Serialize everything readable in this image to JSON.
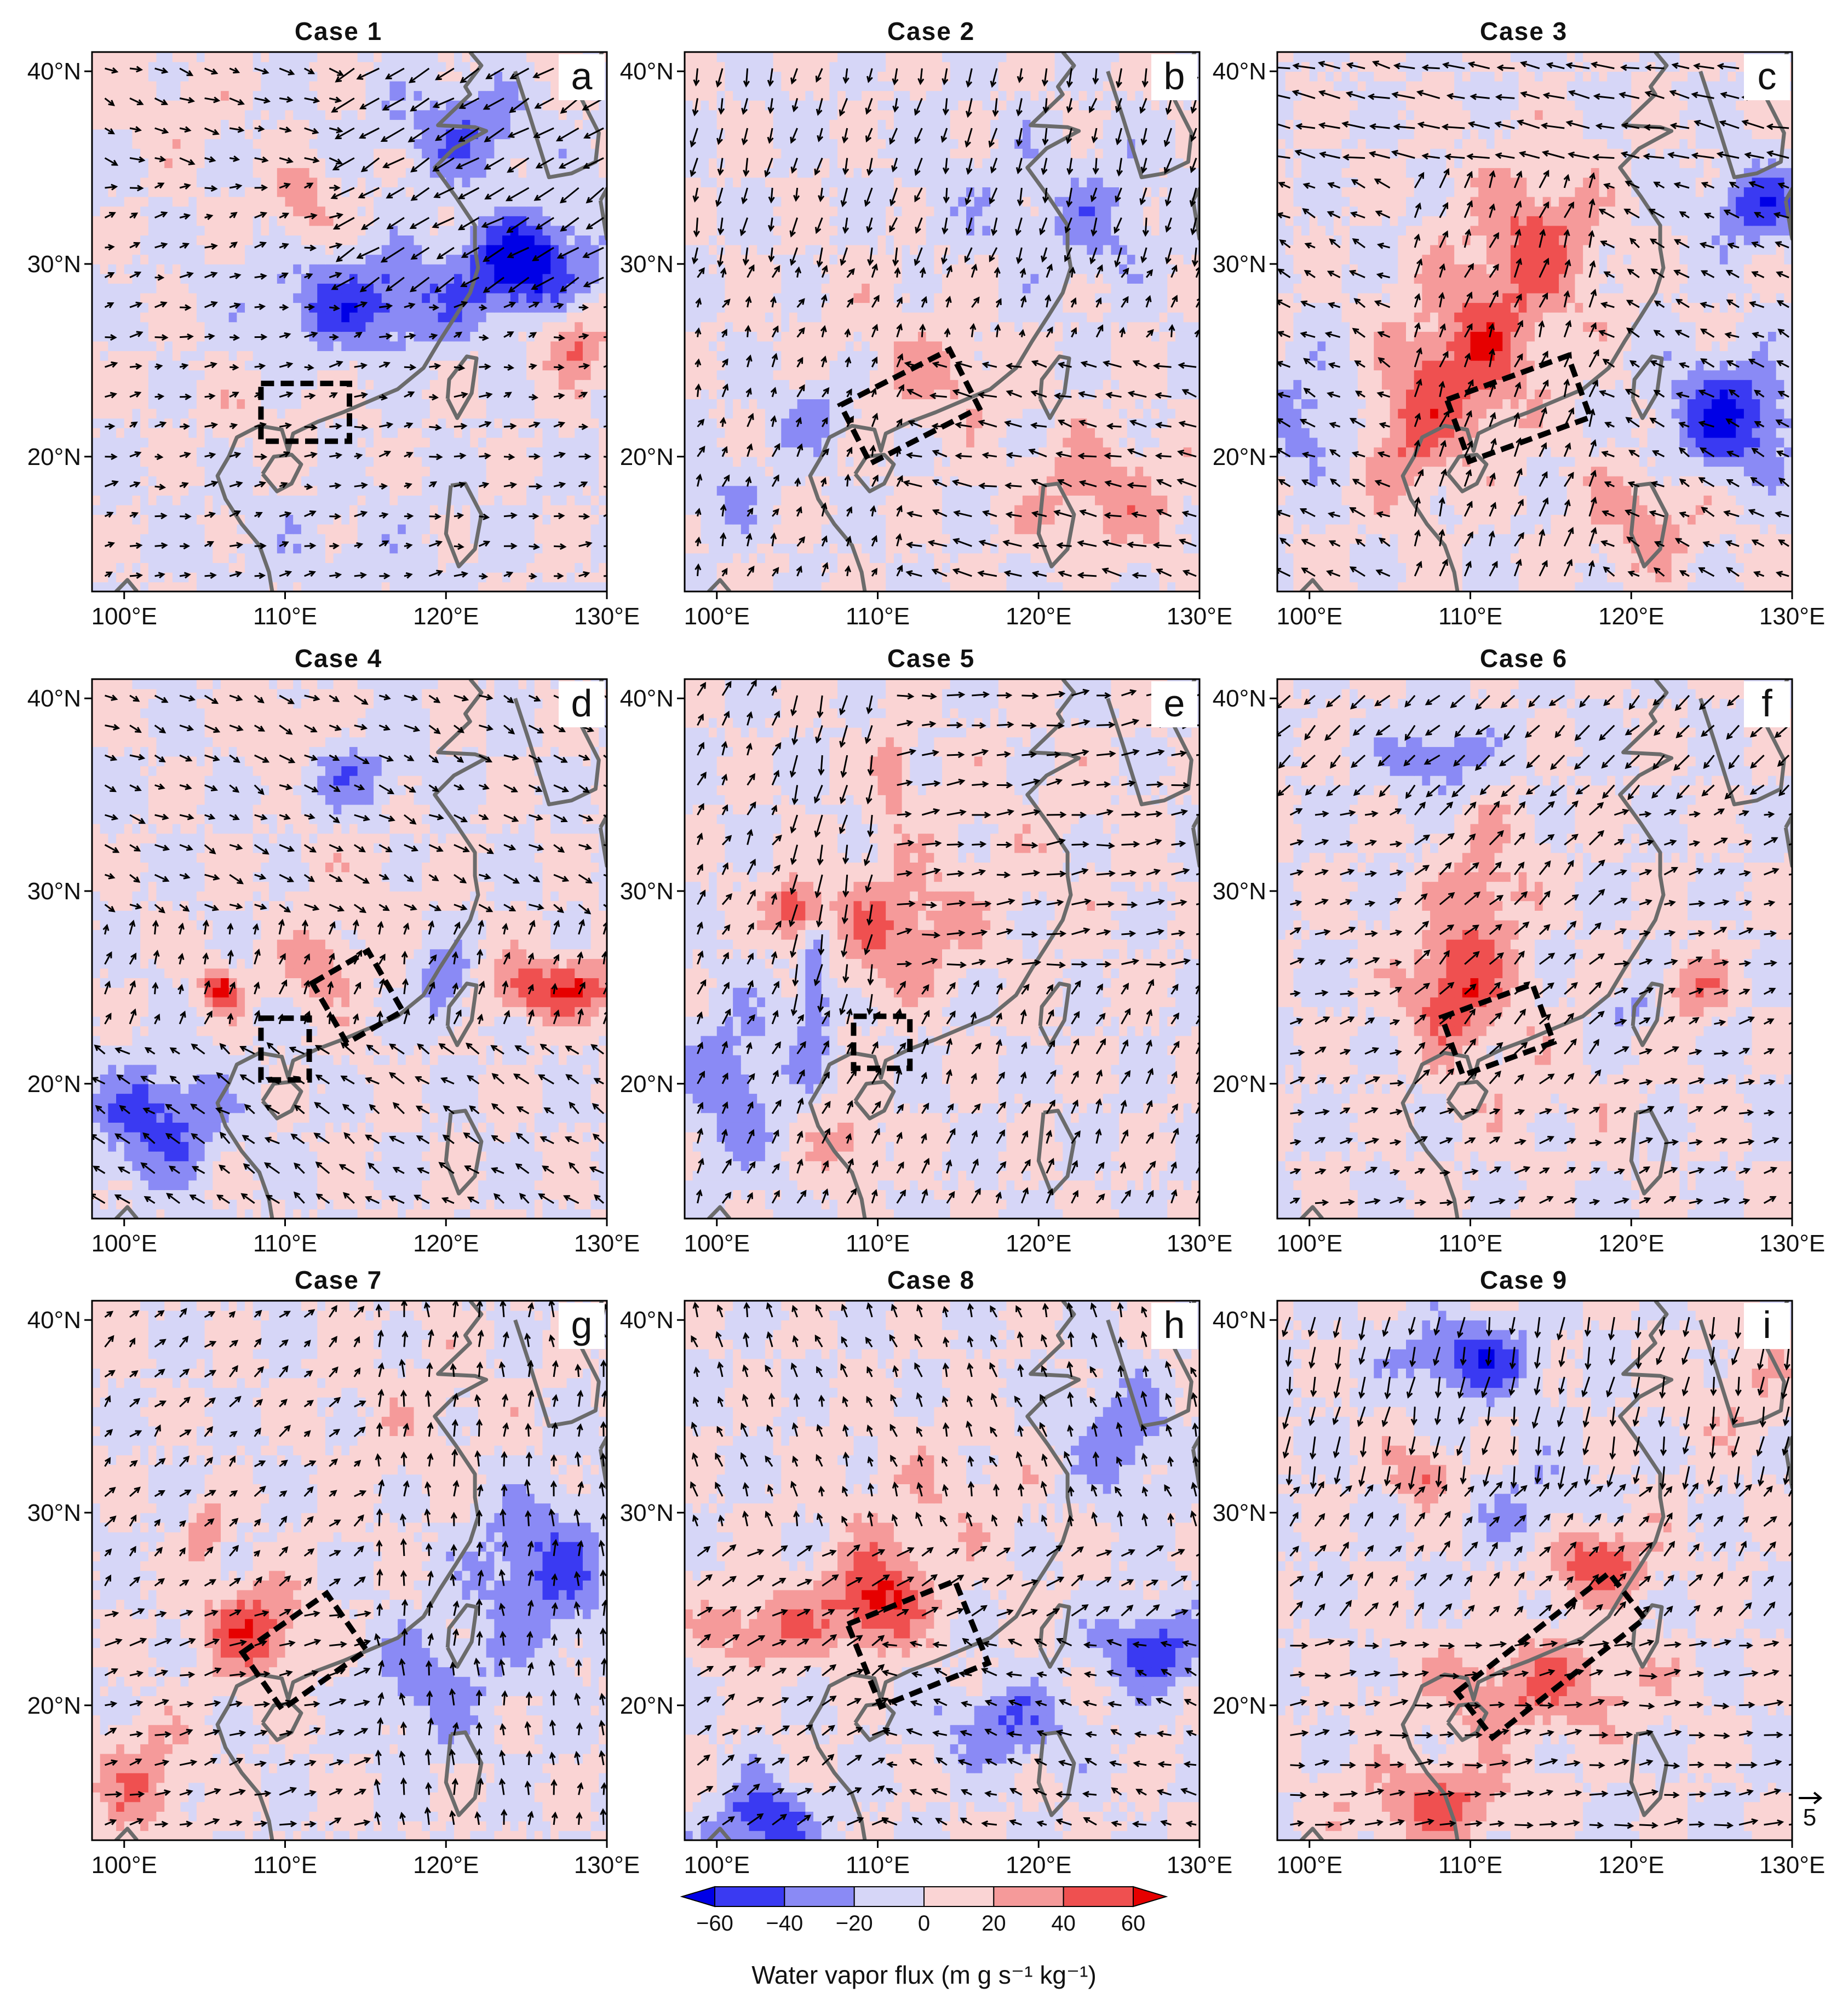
{
  "figure": {
    "panels": [
      {
        "title": "Case 1",
        "letter": "a",
        "box": {
          "type": "rect",
          "lon": [
            108.5,
            114.0
          ],
          "lat": [
            20.8,
            23.8
          ]
        },
        "pattern": 0
      },
      {
        "title": "Case 2",
        "letter": "b",
        "box": {
          "type": "tilted",
          "lon_center": 112.0,
          "lat_center": 22.6,
          "lon_half": 3.8,
          "lat_half": 1.7,
          "angle_deg": 27
        },
        "pattern": 1
      },
      {
        "title": "Case 3",
        "letter": "c",
        "box": {
          "type": "tilted",
          "lon_center": 113.0,
          "lat_center": 22.5,
          "lon_half": 4.0,
          "lat_half": 1.7,
          "angle_deg": 20
        },
        "pattern": 2
      },
      {
        "title": "Case 4",
        "letter": "d",
        "box": {
          "type": "multi",
          "rects": [
            {
              "lon": [
                108.5,
                111.5
              ],
              "lat": [
                20.2,
                23.4
              ]
            }
          ],
          "tilted": {
            "lon_center": 114.5,
            "lat_center": 24.5,
            "lon_half": 2.0,
            "lat_half": 1.8,
            "angle_deg": 30
          }
        },
        "pattern": 3
      },
      {
        "title": "Case 5",
        "letter": "e",
        "box": {
          "type": "rect",
          "lon": [
            108.5,
            112.0
          ],
          "lat": [
            20.8,
            23.5
          ]
        },
        "pattern": 4
      },
      {
        "title": "Case 6",
        "letter": "f",
        "box": {
          "type": "tilted",
          "lon_center": 111.7,
          "lat_center": 22.8,
          "lon_half": 3.0,
          "lat_half": 1.6,
          "angle_deg": 20
        },
        "pattern": 5
      },
      {
        "title": "Case 7",
        "letter": "g",
        "box": {
          "type": "tilted",
          "lon_center": 111.2,
          "lat_center": 22.8,
          "lon_half": 3.2,
          "lat_half": 1.8,
          "angle_deg": 35
        },
        "pattern": 6
      },
      {
        "title": "Case 8",
        "letter": "h",
        "box": {
          "type": "tilted",
          "lon_center": 112.5,
          "lat_center": 23.2,
          "lon_half": 3.6,
          "lat_half": 2.3,
          "angle_deg": 22
        },
        "pattern": 7
      },
      {
        "title": "Case 9",
        "letter": "i",
        "box": {
          "type": "tilted",
          "lon_center": 115.0,
          "lat_center": 22.6,
          "lon_half": 6.0,
          "lat_half": 1.5,
          "angle_deg": 38
        },
        "pattern": 8
      }
    ],
    "lon_ticks": [
      "100°E",
      "110°E",
      "120°E",
      "130°E"
    ],
    "lat_ticks": [
      "20°N",
      "30°N",
      "40°N"
    ],
    "lon_tick_values": [
      100,
      110,
      120,
      130
    ],
    "lat_tick_values": [
      20,
      30,
      40
    ],
    "lon_range": [
      98,
      130
    ],
    "lat_range": [
      13,
      41
    ],
    "reference_vector": {
      "label": "5"
    },
    "colorbar": {
      "title": "Water vapor flux (m g s⁻¹ kg⁻¹)",
      "tick_labels": [
        "−60",
        "−40",
        "−20",
        "0",
        "20",
        "40",
        "60"
      ],
      "colors": [
        "#0000e6",
        "#3a3af2",
        "#8a8af5",
        "#d6d6f7",
        "#fad4d4",
        "#f59a9a",
        "#ef5050",
        "#e60000"
      ]
    },
    "colors": {
      "coastline": "#6b6b6b",
      "box": "#000000",
      "arrow": "#000000"
    }
  }
}
